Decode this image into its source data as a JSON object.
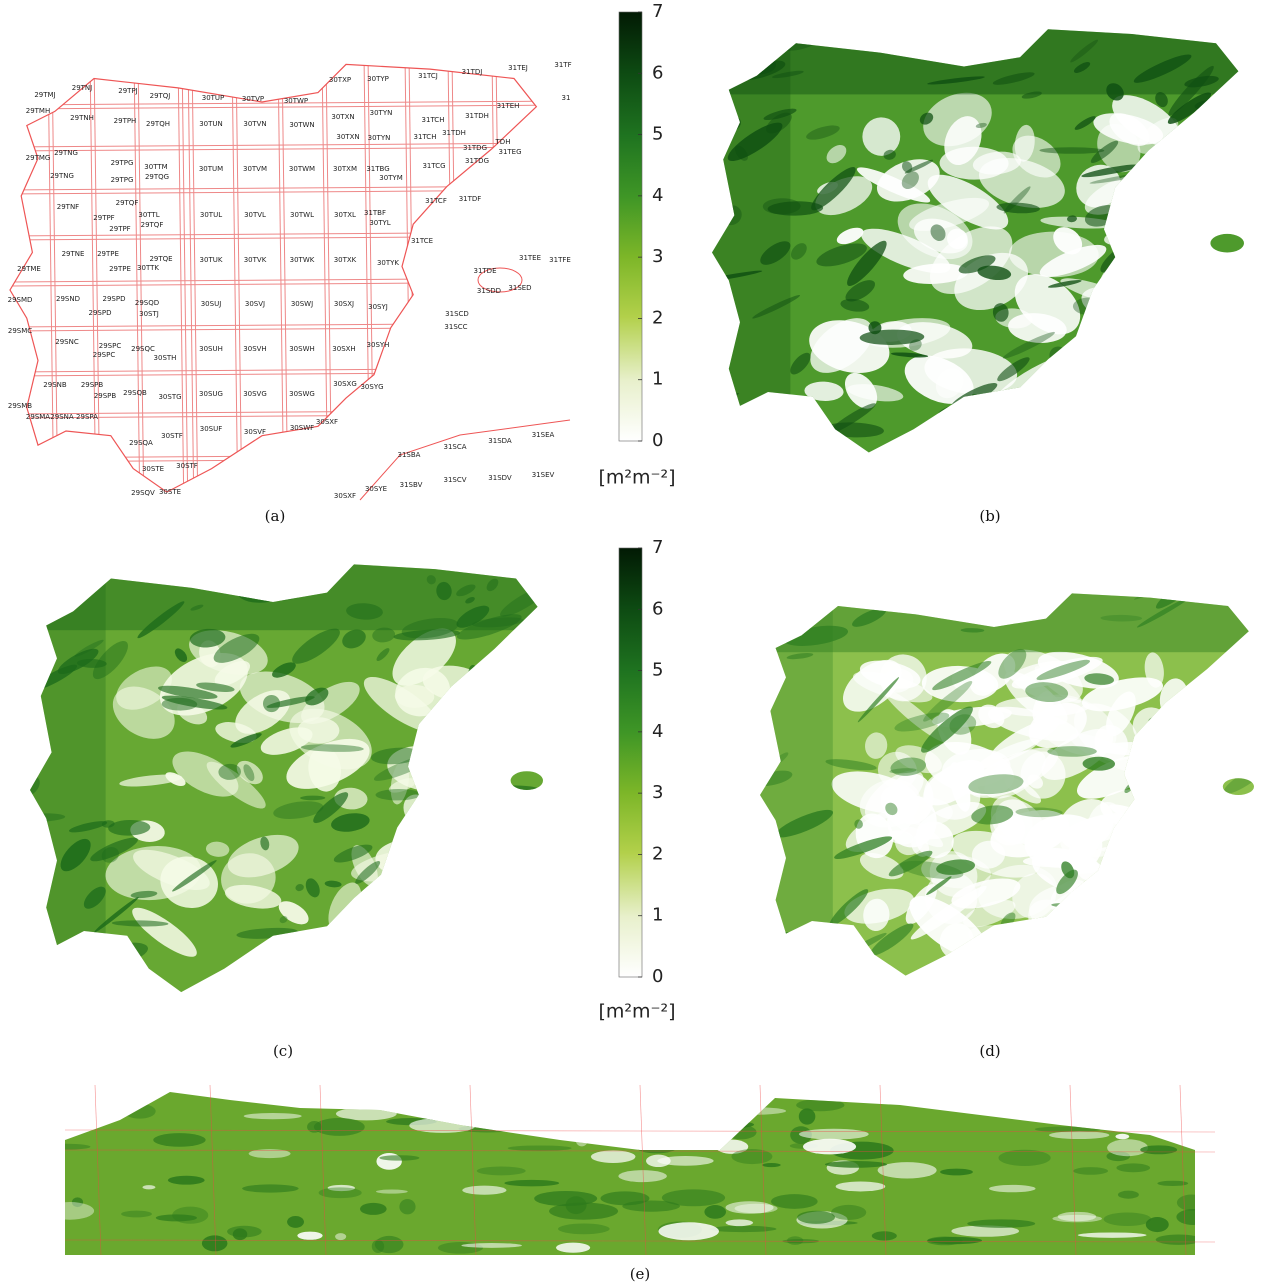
{
  "panels": {
    "a": {
      "label": "(a)",
      "tiles": [
        "29TMJ",
        "29TNJ",
        "29TPJ",
        "29TQJ",
        "30TUP",
        "30TVP",
        "30TWP",
        "30TXP",
        "30TYP",
        "31TCJ",
        "31TDJ",
        "31TEJ",
        "31TF",
        "31",
        "29TMH",
        "29TNH",
        "29TPH",
        "29TQH",
        "30TUN",
        "30TVN",
        "30TWN",
        "30TXN",
        "30TYN",
        "31TCH",
        "31TDH",
        "31TEH",
        "30TXN",
        "30TYN",
        "31TCH",
        "31TDH",
        "TDH",
        "29TMG",
        "29TNG",
        "29TPG",
        "30TTM",
        "31TDG",
        "31TEG",
        "31TDG",
        "29TNG",
        "29TPG",
        "29TQG",
        "30TUM",
        "30TVM",
        "30TWM",
        "30TXM",
        "31TBG",
        "30TYM",
        "31TCG",
        "29TNF",
        "29TQF",
        "29TPF",
        "30TTL",
        "29TQF",
        "29TPF",
        "30TUL",
        "30TVL",
        "30TWL",
        "30TXL",
        "31TBF",
        "30TYL",
        "31TCF",
        "31TDF",
        "31TCE",
        "29TNE",
        "29TPE",
        "29TQE",
        "29TME",
        "29TPE",
        "30TTK",
        "30TUK",
        "30TVK",
        "30TWK",
        "30TXK",
        "30TYK",
        "31TDE",
        "31TEE",
        "31TFE",
        "31SDD",
        "31SED",
        "29SMD",
        "29SND",
        "29SPD",
        "29SQD",
        "30STJ",
        "29SPD",
        "30SUJ",
        "30SVJ",
        "30SWJ",
        "30SXJ",
        "30SYJ",
        "31SCD",
        "31SCC",
        "29SMC",
        "29SNC",
        "29SPC",
        "29SQC",
        "29SPC",
        "30STH",
        "30SUH",
        "30SVH",
        "30SWH",
        "30SXH",
        "30SYH",
        "29SNB",
        "29SPB",
        "29SPB",
        "29SQB",
        "30STG",
        "30SUG",
        "30SVG",
        "30SWG",
        "30SXG",
        "30SYG",
        "29SMB",
        "29SMA",
        "29SNA",
        "29SPA",
        "30SXF",
        "30SWF",
        "30SUF",
        "30SVF",
        "30STF",
        "29SQA",
        "31SEA",
        "31SDA",
        "31SCA",
        "31SBA",
        "30STE",
        "30STF",
        "31SEV",
        "31SDV",
        "31SCV",
        "31SBV",
        "30SYE",
        "29SQV",
        "30STE",
        "30SXF"
      ]
    },
    "b": {
      "label": "(b)"
    },
    "c": {
      "label": "(c)"
    },
    "d": {
      "label": "(d)"
    },
    "e": {
      "label": "(e)"
    }
  },
  "colorbars": [
    {
      "lim": [
        0,
        7
      ],
      "ticks": [
        0,
        1,
        2,
        3,
        4,
        5,
        6,
        7
      ],
      "unit": "[m²m⁻²]"
    },
    {
      "lim": [
        0,
        7
      ],
      "ticks": [
        0,
        1,
        2,
        3,
        4,
        5,
        6,
        7
      ],
      "unit": "[m²m⁻²]"
    }
  ]
}
